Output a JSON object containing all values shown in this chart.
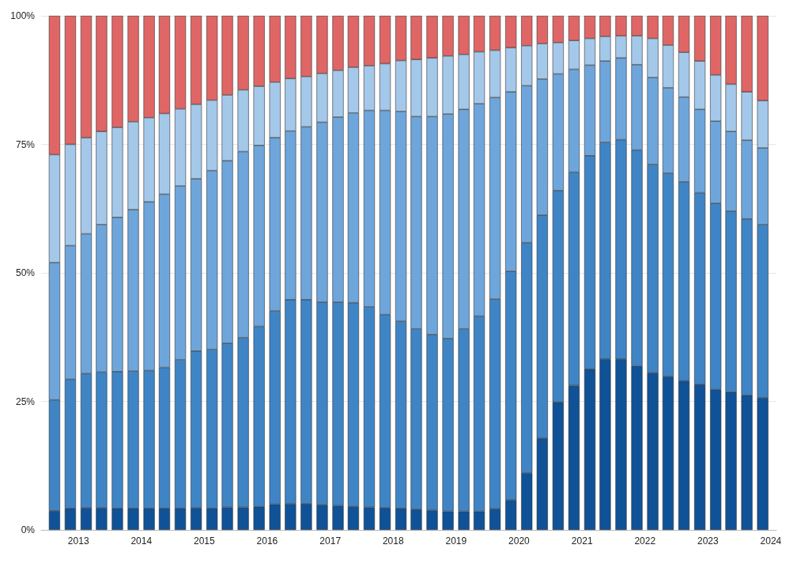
{
  "chart_data": {
    "type": "bar",
    "stacked": true,
    "x": [
      "2012-08-15",
      "2012-11-15",
      "2013-02-15",
      "2013-05-15",
      "2013-08-15",
      "2013-11-15",
      "2014-02-15",
      "2014-05-15",
      "2014-08-15",
      "2014-11-15",
      "2015-02-15",
      "2015-05-15",
      "2015-08-15",
      "2015-11-15",
      "2016-02-15",
      "2016-05-15",
      "2016-08-15",
      "2016-11-15",
      "2017-02-15",
      "2017-05-15",
      "2017-08-15",
      "2017-11-15",
      "2018-02-15",
      "2018-05-15",
      "2018-08-15",
      "2018-11-15",
      "2019-02-15",
      "2019-05-15",
      "2019-08-15",
      "2019-11-15",
      "2020-02-15",
      "2020-05-15",
      "2020-08-15",
      "2020-11-15",
      "2021-02-15",
      "2021-05-15",
      "2021-08-15",
      "2021-11-15",
      "2022-02-15",
      "2022-05-15",
      "2022-08-15",
      "2022-11-15",
      "2023-02-15",
      "2023-05-15",
      "2023-08-15",
      "2023-11-15"
    ],
    "series": [
      {
        "color": "#0f5297",
        "values": [
          3.7,
          4.2,
          4.3,
          4.3,
          4.2,
          4.2,
          4.2,
          4.2,
          4.2,
          4.3,
          4.2,
          4.4,
          4.4,
          4.5,
          5,
          5.1,
          5.1,
          4.9,
          4.7,
          4.6,
          4.4,
          4.3,
          4.2,
          4,
          3.8,
          3.6,
          3.6,
          3.6,
          4.1,
          5.8,
          11.1,
          17.8,
          24.9,
          28.1,
          31.3,
          33.2,
          33.2,
          31.9,
          30.6,
          29.8,
          29,
          28.3,
          27.3,
          26.8,
          26.2,
          25.7
        ]
      },
      {
        "color": "#3f85c6",
        "values": [
          21.6,
          25.1,
          26.1,
          26.4,
          26.6,
          26.7,
          26.8,
          27.4,
          28.9,
          30.5,
          30.9,
          31.9,
          33,
          35.1,
          37.6,
          39.7,
          39.7,
          39.4,
          39.6,
          39.6,
          39,
          37.6,
          36.4,
          35.1,
          34.2,
          33.6,
          35.5,
          38,
          40.8,
          44.5,
          44.8,
          43.4,
          41.1,
          41.5,
          41.5,
          42.2,
          42.7,
          42,
          40.5,
          39.6,
          38.7,
          37.3,
          36.2,
          35.2,
          34.3,
          33.7
        ]
      },
      {
        "color": "#6ea6dc",
        "values": [
          26.7,
          26,
          27.2,
          28.7,
          30,
          31.4,
          32.8,
          33.7,
          33.8,
          33.5,
          34.8,
          35.5,
          36.2,
          35.2,
          33.7,
          32.8,
          33.6,
          35,
          36,
          36.9,
          38.2,
          39.7,
          40.8,
          41.3,
          42.4,
          43.7,
          42.7,
          41.3,
          39.2,
          34.9,
          30.5,
          26.5,
          22.7,
          20,
          17.6,
          15.8,
          15.9,
          16.6,
          16.9,
          16.6,
          16.5,
          16.2,
          16,
          15.5,
          15.3,
          14.9
        ]
      },
      {
        "color": "#a4c8ea",
        "values": [
          21,
          19.7,
          18.7,
          18.1,
          17.5,
          17.1,
          16.4,
          15.7,
          15,
          14.5,
          13.7,
          12.8,
          12,
          11.5,
          10.8,
          10.2,
          9.8,
          9.5,
          9.1,
          8.9,
          8.7,
          9.1,
          9.9,
          11.1,
          11.4,
          11.3,
          10.7,
          10.1,
          9.2,
          8.6,
          7.8,
          6.9,
          6.1,
          5.6,
          5.2,
          4.8,
          4.3,
          5.6,
          7.6,
          8.3,
          8.7,
          9.4,
          9,
          9.2,
          9.4,
          9.2
        ]
      },
      {
        "color": "#e06666",
        "values": [
          27,
          25,
          23.7,
          22.5,
          21.7,
          20.6,
          19.8,
          19,
          18.1,
          17.2,
          16.4,
          15.4,
          14.4,
          13.7,
          12.9,
          12.2,
          11.8,
          11.2,
          10.6,
          10,
          9.7,
          9.3,
          8.7,
          8.5,
          8.2,
          7.8,
          7.5,
          7,
          6.7,
          6.2,
          5.8,
          5.4,
          5.2,
          4.8,
          4.4,
          4,
          3.9,
          3.9,
          4.4,
          5.7,
          7.1,
          8.8,
          11.5,
          13.3,
          14.8,
          16.5
        ]
      }
    ],
    "xlim": [
      "2012-07-01",
      "2024-01-01"
    ],
    "xticks": [
      "2013",
      "2014",
      "2015",
      "2016",
      "2017",
      "2018",
      "2019",
      "2020",
      "2021",
      "2022",
      "2023",
      "2024"
    ],
    "ylim": [
      0,
      100
    ],
    "yticks": [
      {
        "value": 0,
        "label": "0%"
      },
      {
        "value": 25,
        "label": "25%"
      },
      {
        "value": 50,
        "label": "50%"
      },
      {
        "value": 75,
        "label": "75%"
      },
      {
        "value": 100,
        "label": "100%"
      }
    ],
    "grid": "y"
  }
}
